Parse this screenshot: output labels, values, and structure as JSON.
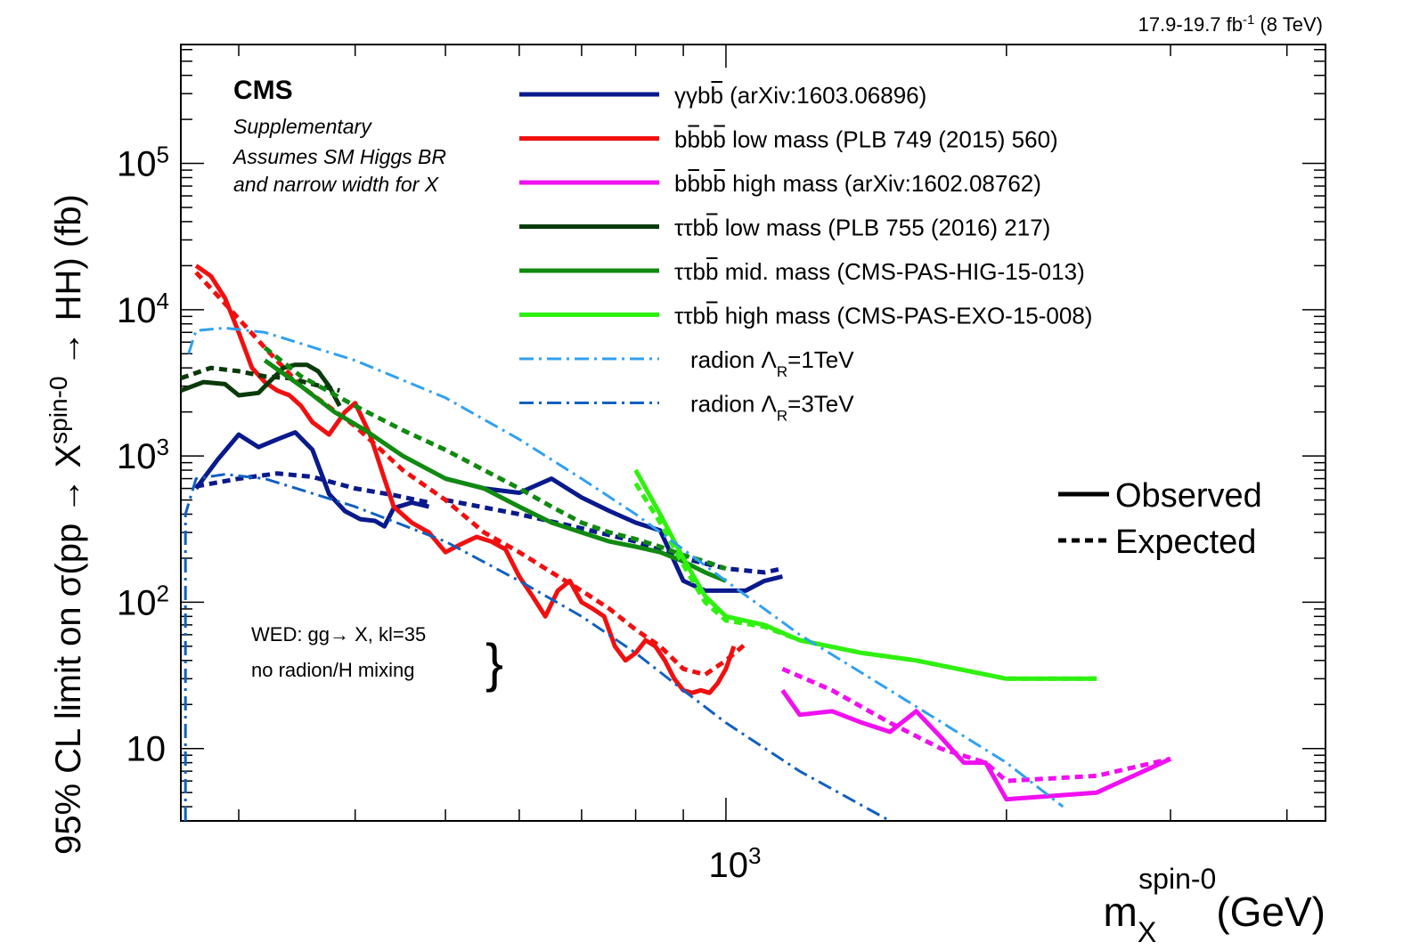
{
  "chart_data": {
    "type": "line",
    "lumi_label": "17.9-19.7 fb",
    "lumi_sup": "-1",
    "lumi_energy": "(8 TeV)",
    "experiment": "CMS",
    "supplementary": "Supplementary",
    "note_line1": "Assumes SM Higgs BR",
    "note_line2": "and narrow width for X",
    "model_line1": "WED: gg→ X, kl=35",
    "model_line2": "no radion/H mixing",
    "brace": "}",
    "ylabel_main": "95% CL limit on σ(pp → X",
    "ylabel_sup": "spin-0",
    "ylabel_tail": " → HH) (fb)",
    "xlabel_main": "m",
    "xlabel_sub": "X",
    "xlabel_sup": "spin-0",
    "xlabel_unit": "(GeV)",
    "x_scale": "log",
    "y_scale": "log",
    "xlim": [
      260,
      4400
    ],
    "ylim": [
      3.2,
      650000
    ],
    "x_tick_labels": [
      {
        "base": "10",
        "exp": "3",
        "value": 1000
      }
    ],
    "y_tick_labels": [
      {
        "base": "10",
        "exp": "",
        "value": 10
      },
      {
        "base": "10",
        "exp": "2",
        "value": 100
      },
      {
        "base": "10",
        "exp": "3",
        "value": 1000
      },
      {
        "base": "10",
        "exp": "4",
        "value": 10000
      },
      {
        "base": "10",
        "exp": "5",
        "value": 100000
      }
    ],
    "style_legend": [
      {
        "label": "Observed",
        "dash": "solid"
      },
      {
        "label": "Expected",
        "dash": "dashed"
      }
    ],
    "series": [
      {
        "key": "ggbb",
        "prefix": "γγbb",
        "text": " (arXiv:1603.06896)",
        "bars": "b",
        "color": "#0a1a8c",
        "observed": [
          [
            270,
            600
          ],
          [
            285,
            950
          ],
          [
            300,
            1400
          ],
          [
            315,
            1150
          ],
          [
            330,
            1300
          ],
          [
            345,
            1450
          ],
          [
            360,
            1100
          ],
          [
            375,
            550
          ],
          [
            390,
            420
          ],
          [
            405,
            370
          ],
          [
            420,
            360
          ],
          [
            430,
            330
          ],
          [
            440,
            440
          ],
          [
            460,
            480
          ],
          [
            480,
            450
          ]
        ],
        "expected": [
          [
            270,
            620
          ],
          [
            300,
            700
          ],
          [
            330,
            760
          ],
          [
            360,
            720
          ],
          [
            400,
            600
          ],
          [
            440,
            540
          ],
          [
            480,
            480
          ]
        ]
      },
      {
        "key": "ggbb_hi",
        "prefix": "",
        "text": "",
        "bars": "",
        "color": "#0a1a8c",
        "observed": [
          [
            500,
            700
          ],
          [
            550,
            600
          ],
          [
            600,
            560
          ],
          [
            650,
            700
          ],
          [
            700,
            520
          ],
          [
            750,
            420
          ],
          [
            800,
            350
          ],
          [
            850,
            310
          ],
          [
            900,
            140
          ],
          [
            950,
            120
          ],
          [
            1000,
            120
          ],
          [
            1050,
            120
          ],
          [
            1100,
            140
          ],
          [
            1150,
            150
          ]
        ],
        "expected": [
          [
            500,
            500
          ],
          [
            600,
            400
          ],
          [
            700,
            320
          ],
          [
            800,
            260
          ],
          [
            900,
            200
          ],
          [
            1000,
            170
          ],
          [
            1100,
            160
          ],
          [
            1150,
            170
          ]
        ]
      },
      {
        "key": "bbbb_low",
        "prefix": "bbbb",
        "text": " low mass (PLB 749 (2015) 560)",
        "bars": "bb",
        "color": "#f01010",
        "observed": [
          [
            270,
            20000
          ],
          [
            280,
            17000
          ],
          [
            290,
            12000
          ],
          [
            300,
            7000
          ],
          [
            310,
            4000
          ],
          [
            320,
            3200
          ],
          [
            330,
            2800
          ],
          [
            340,
            2600
          ],
          [
            350,
            2200
          ],
          [
            360,
            1700
          ],
          [
            375,
            1400
          ],
          [
            390,
            2000
          ],
          [
            400,
            2300
          ],
          [
            415,
            1400
          ],
          [
            430,
            700
          ],
          [
            440,
            450
          ],
          [
            460,
            350
          ],
          [
            480,
            300
          ],
          [
            500,
            220
          ],
          [
            520,
            250
          ],
          [
            540,
            280
          ],
          [
            560,
            260
          ],
          [
            580,
            230
          ],
          [
            600,
            150
          ],
          [
            620,
            110
          ],
          [
            640,
            80
          ],
          [
            660,
            120
          ],
          [
            680,
            140
          ],
          [
            700,
            100
          ],
          [
            720,
            90
          ],
          [
            740,
            80
          ],
          [
            760,
            50
          ],
          [
            780,
            40
          ],
          [
            800,
            45
          ],
          [
            820,
            55
          ],
          [
            840,
            50
          ],
          [
            860,
            40
          ],
          [
            880,
            30
          ],
          [
            900,
            25
          ],
          [
            920,
            24
          ],
          [
            940,
            25
          ],
          [
            960,
            24
          ],
          [
            980,
            28
          ],
          [
            1000,
            35
          ],
          [
            1020,
            50
          ]
        ],
        "expected": [
          [
            270,
            18000
          ],
          [
            290,
            11000
          ],
          [
            320,
            5500
          ],
          [
            350,
            3000
          ],
          [
            400,
            1600
          ],
          [
            450,
            800
          ],
          [
            500,
            500
          ],
          [
            550,
            300
          ],
          [
            600,
            220
          ],
          [
            650,
            160
          ],
          [
            700,
            120
          ],
          [
            750,
            90
          ],
          [
            800,
            65
          ],
          [
            850,
            50
          ],
          [
            900,
            35
          ],
          [
            950,
            32
          ],
          [
            1000,
            40
          ],
          [
            1050,
            52
          ]
        ]
      },
      {
        "key": "bbbb_high",
        "prefix": "bbbb",
        "text": " high mass (arXiv:1602.08762)",
        "bars": "bb",
        "color": "#f010f0",
        "observed": [
          [
            1150,
            25
          ],
          [
            1200,
            17
          ],
          [
            1300,
            18
          ],
          [
            1400,
            15
          ],
          [
            1500,
            13
          ],
          [
            1600,
            18
          ],
          [
            1700,
            12
          ],
          [
            1800,
            8
          ],
          [
            1900,
            8
          ],
          [
            2000,
            4.5
          ],
          [
            2500,
            5
          ],
          [
            3000,
            8.5
          ]
        ],
        "expected": [
          [
            1150,
            35
          ],
          [
            1300,
            25
          ],
          [
            1500,
            15
          ],
          [
            1700,
            10
          ],
          [
            1900,
            8
          ],
          [
            2000,
            6
          ],
          [
            2500,
            6.5
          ],
          [
            3000,
            8.5
          ]
        ]
      },
      {
        "key": "ttbb_low",
        "prefix": "ττbb",
        "text": " low mass (PLB 755 (2016) 217)",
        "bars": "b",
        "color": "#0a3a0a",
        "observed": [
          [
            260,
            2800
          ],
          [
            275,
            3200
          ],
          [
            290,
            3100
          ],
          [
            300,
            2600
          ],
          [
            315,
            2700
          ],
          [
            325,
            3300
          ],
          [
            335,
            4000
          ],
          [
            345,
            4200
          ],
          [
            355,
            4200
          ],
          [
            365,
            3800
          ],
          [
            375,
            3000
          ],
          [
            385,
            2200
          ]
        ],
        "expected": [
          [
            260,
            3400
          ],
          [
            280,
            4000
          ],
          [
            300,
            3800
          ],
          [
            320,
            3500
          ],
          [
            340,
            3400
          ],
          [
            360,
            3100
          ],
          [
            385,
            2800
          ]
        ]
      },
      {
        "key": "ttbb_mid",
        "prefix": "ττbb",
        "text": " mid. mass (CMS-PAS-HIG-15-013)",
        "bars": "b",
        "color": "#108a10",
        "observed": [
          [
            320,
            4500
          ],
          [
            350,
            3000
          ],
          [
            380,
            2000
          ],
          [
            410,
            1500
          ],
          [
            450,
            1000
          ],
          [
            500,
            700
          ],
          [
            550,
            600
          ],
          [
            600,
            450
          ],
          [
            650,
            350
          ],
          [
            700,
            300
          ],
          [
            750,
            260
          ],
          [
            800,
            240
          ],
          [
            850,
            220
          ],
          [
            900,
            190
          ],
          [
            950,
            160
          ],
          [
            1000,
            140
          ]
        ],
        "expected": [
          [
            320,
            5500
          ],
          [
            350,
            3500
          ],
          [
            400,
            2200
          ],
          [
            450,
            1500
          ],
          [
            500,
            1100
          ],
          [
            550,
            800
          ],
          [
            600,
            600
          ],
          [
            650,
            450
          ],
          [
            700,
            350
          ],
          [
            750,
            300
          ],
          [
            800,
            270
          ],
          [
            850,
            240
          ],
          [
            900,
            210
          ],
          [
            950,
            190
          ],
          [
            1000,
            170
          ]
        ]
      },
      {
        "key": "ttbb_high",
        "prefix": "ττbb",
        "text": " high mass (CMS-PAS-EXO-15-008)",
        "bars": "b",
        "color": "#30f010",
        "observed": [
          [
            800,
            800
          ],
          [
            850,
            400
          ],
          [
            900,
            200
          ],
          [
            950,
            110
          ],
          [
            1000,
            80
          ],
          [
            1100,
            70
          ],
          [
            1200,
            55
          ],
          [
            1400,
            45
          ],
          [
            1600,
            40
          ],
          [
            2000,
            30
          ],
          [
            2500,
            30
          ]
        ],
        "expected": [
          [
            800,
            650
          ],
          [
            850,
            350
          ],
          [
            900,
            180
          ],
          [
            950,
            100
          ],
          [
            1000,
            75
          ],
          [
            1100,
            68
          ],
          [
            1200,
            55
          ],
          [
            1400,
            45
          ],
          [
            1600,
            40
          ],
          [
            2000,
            30
          ],
          [
            2500,
            30
          ]
        ]
      },
      {
        "key": "rad1",
        "prefix": "radion Λ",
        "sub": "R",
        "text": "=1TeV",
        "bars": "",
        "color": "#30a0f0",
        "theory": [
          [
            265,
            5000
          ],
          [
            270,
            7200
          ],
          [
            290,
            7500
          ],
          [
            320,
            7000
          ],
          [
            400,
            4500
          ],
          [
            500,
            2500
          ],
          [
            600,
            1300
          ],
          [
            700,
            700
          ],
          [
            800,
            400
          ],
          [
            900,
            230
          ],
          [
            1000,
            140
          ],
          [
            1200,
            60
          ],
          [
            1500,
            25
          ],
          [
            2000,
            8
          ],
          [
            2300,
            4
          ]
        ]
      },
      {
        "key": "rad3",
        "prefix": "radion Λ",
        "sub": "R",
        "text": "=3TeV",
        "bars": "",
        "color": "#1060c0",
        "theory": [
          [
            263,
            3.2
          ],
          [
            263,
            400
          ],
          [
            270,
            700
          ],
          [
            290,
            750
          ],
          [
            320,
            700
          ],
          [
            400,
            450
          ],
          [
            500,
            260
          ],
          [
            600,
            140
          ],
          [
            700,
            80
          ],
          [
            800,
            45
          ],
          [
            900,
            25
          ],
          [
            1000,
            15
          ],
          [
            1200,
            7
          ],
          [
            1500,
            3.2
          ]
        ]
      }
    ]
  }
}
